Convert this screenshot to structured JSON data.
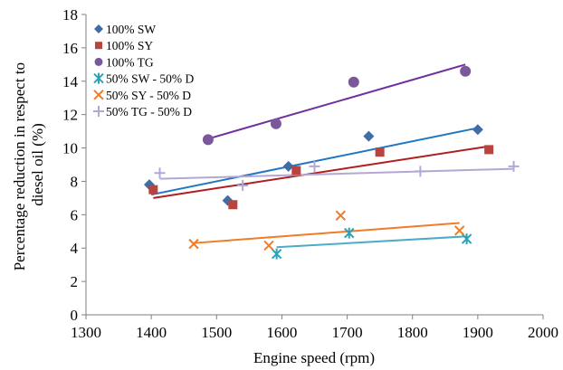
{
  "chart_data": {
    "type": "scatter",
    "title": "",
    "xlabel": "Engine speed (rpm)",
    "ylabel": [
      "Percentage reduction in respect to",
      "diesel oil (%)"
    ],
    "xlim": [
      1300,
      2000
    ],
    "ylim": [
      0,
      18
    ],
    "xticks": [
      "1300",
      "1400",
      "1500",
      "1600",
      "1700",
      "1800",
      "1900",
      "2000"
    ],
    "yticks": [
      "0",
      "2",
      "4",
      "6",
      "8",
      "10",
      "12",
      "14",
      "16",
      "18"
    ],
    "grid": false,
    "legend_position": "top-left",
    "trendlines": "linear",
    "series": [
      {
        "name": "100% SW",
        "marker": "diamond",
        "color": "#3f6ea6",
        "line_color": "#1f77c0",
        "x": [
          1397,
          1517,
          1610,
          1733,
          1900
        ],
        "y": [
          7.8,
          6.85,
          8.9,
          10.7,
          11.1
        ],
        "trend": [
          [
            1400,
            7.2
          ],
          [
            1900,
            11.2
          ]
        ]
      },
      {
        "name": "100% SY",
        "marker": "square",
        "color": "#b9433d",
        "line_color": "#b01e1e",
        "x": [
          1403,
          1525,
          1622,
          1750,
          1917
        ],
        "y": [
          7.5,
          6.6,
          8.65,
          9.75,
          9.9
        ],
        "trend": [
          [
            1403,
            7.0
          ],
          [
            1917,
            10.1
          ]
        ]
      },
      {
        "name": "100% TG",
        "marker": "circle",
        "color": "#7b579b",
        "line_color": "#7030a0",
        "x": [
          1487,
          1591,
          1710,
          1881
        ],
        "y": [
          10.5,
          11.45,
          13.95,
          14.6
        ],
        "trend": [
          [
            1487,
            10.55
          ],
          [
            1881,
            15.0
          ]
        ]
      },
      {
        "name": "50% SW - 50% D",
        "marker": "star",
        "color": "#2aa3b8",
        "line_color": "#4bacc6",
        "x": [
          1592,
          1703,
          1883
        ],
        "y": [
          3.65,
          4.9,
          4.55
        ],
        "trend": [
          [
            1592,
            4.05
          ],
          [
            1883,
            4.7
          ]
        ]
      },
      {
        "name": "50% SY - 50% D",
        "marker": "x",
        "color": "#f07c28",
        "line_color": "#f07c28",
        "x": [
          1465,
          1580,
          1690,
          1872
        ],
        "y": [
          4.25,
          4.15,
          5.95,
          5.05
        ],
        "trend": [
          [
            1465,
            4.3
          ],
          [
            1872,
            5.5
          ]
        ]
      },
      {
        "name": "50% TG - 50% D",
        "marker": "plus",
        "color": "#b4a7d6",
        "line_color": "#b4a7d6",
        "x": [
          1413,
          1540,
          1650,
          1812,
          1955
        ],
        "y": [
          8.5,
          7.75,
          8.9,
          8.6,
          8.9
        ],
        "trend": [
          [
            1413,
            8.15
          ],
          [
            1955,
            8.75
          ]
        ]
      }
    ]
  }
}
